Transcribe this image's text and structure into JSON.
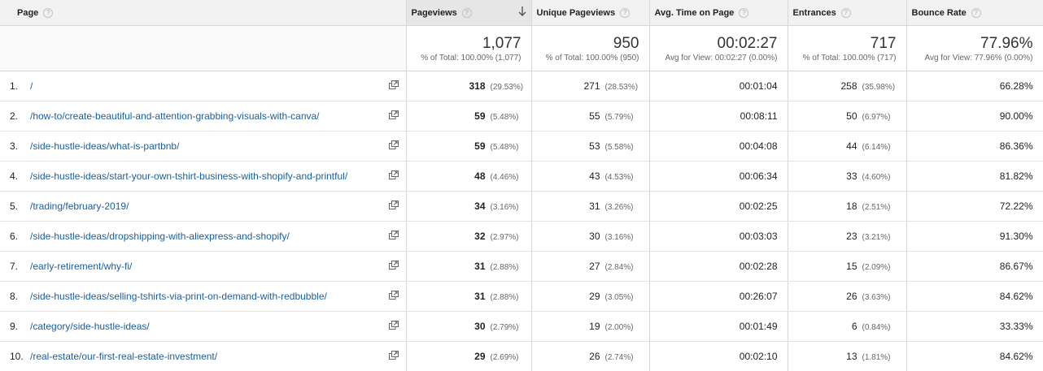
{
  "columns": {
    "page": "Page",
    "pageviews": "Pageviews",
    "unique_pageviews": "Unique Pageviews",
    "avg_time": "Avg. Time on Page",
    "entrances": "Entrances",
    "bounce_rate": "Bounce Rate",
    "help_glyph": "?"
  },
  "totals": {
    "pageviews": {
      "value": "1,077",
      "sub": "% of Total: 100.00% (1,077)"
    },
    "unique_pageviews": {
      "value": "950",
      "sub": "% of Total: 100.00% (950)"
    },
    "avg_time": {
      "value": "00:02:27",
      "sub": "Avg for View: 00:02:27 (0.00%)"
    },
    "entrances": {
      "value": "717",
      "sub": "% of Total: 100.00% (717)"
    },
    "bounce_rate": {
      "value": "77.96%",
      "sub": "Avg for View: 77.96% (0.00%)"
    }
  },
  "rows": [
    {
      "num": "1.",
      "page": "/",
      "pageviews": "318",
      "pageviews_pct": "(29.53%)",
      "unique": "271",
      "unique_pct": "(28.53%)",
      "avg_time": "00:01:04",
      "entrances": "258",
      "entrances_pct": "(35.98%)",
      "bounce": "66.28%"
    },
    {
      "num": "2.",
      "page": "/how-to/create-beautiful-and-attention-grabbing-visuals-with-canva/",
      "pageviews": "59",
      "pageviews_pct": "(5.48%)",
      "unique": "55",
      "unique_pct": "(5.79%)",
      "avg_time": "00:08:11",
      "entrances": "50",
      "entrances_pct": "(6.97%)",
      "bounce": "90.00%"
    },
    {
      "num": "3.",
      "page": "/side-hustle-ideas/what-is-partbnb/",
      "pageviews": "59",
      "pageviews_pct": "(5.48%)",
      "unique": "53",
      "unique_pct": "(5.58%)",
      "avg_time": "00:04:08",
      "entrances": "44",
      "entrances_pct": "(6.14%)",
      "bounce": "86.36%"
    },
    {
      "num": "4.",
      "page": "/side-hustle-ideas/start-your-own-tshirt-business-with-shopify-and-printful/",
      "pageviews": "48",
      "pageviews_pct": "(4.46%)",
      "unique": "43",
      "unique_pct": "(4.53%)",
      "avg_time": "00:06:34",
      "entrances": "33",
      "entrances_pct": "(4.60%)",
      "bounce": "81.82%"
    },
    {
      "num": "5.",
      "page": "/trading/february-2019/",
      "pageviews": "34",
      "pageviews_pct": "(3.16%)",
      "unique": "31",
      "unique_pct": "(3.26%)",
      "avg_time": "00:02:25",
      "entrances": "18",
      "entrances_pct": "(2.51%)",
      "bounce": "72.22%"
    },
    {
      "num": "6.",
      "page": "/side-hustle-ideas/dropshipping-with-aliexpress-and-shopify/",
      "pageviews": "32",
      "pageviews_pct": "(2.97%)",
      "unique": "30",
      "unique_pct": "(3.16%)",
      "avg_time": "00:03:03",
      "entrances": "23",
      "entrances_pct": "(3.21%)",
      "bounce": "91.30%"
    },
    {
      "num": "7.",
      "page": "/early-retirement/why-fi/",
      "pageviews": "31",
      "pageviews_pct": "(2.88%)",
      "unique": "27",
      "unique_pct": "(2.84%)",
      "avg_time": "00:02:28",
      "entrances": "15",
      "entrances_pct": "(2.09%)",
      "bounce": "86.67%"
    },
    {
      "num": "8.",
      "page": "/side-hustle-ideas/selling-tshirts-via-print-on-demand-with-redbubble/",
      "pageviews": "31",
      "pageviews_pct": "(2.88%)",
      "unique": "29",
      "unique_pct": "(3.05%)",
      "avg_time": "00:26:07",
      "entrances": "26",
      "entrances_pct": "(3.63%)",
      "bounce": "84.62%"
    },
    {
      "num": "9.",
      "page": "/category/side-hustle-ideas/",
      "pageviews": "30",
      "pageviews_pct": "(2.79%)",
      "unique": "19",
      "unique_pct": "(2.00%)",
      "avg_time": "00:01:49",
      "entrances": "6",
      "entrances_pct": "(0.84%)",
      "bounce": "33.33%"
    },
    {
      "num": "10.",
      "page": "/real-estate/our-first-real-estate-investment/",
      "pageviews": "29",
      "pageviews_pct": "(2.69%)",
      "unique": "26",
      "unique_pct": "(2.74%)",
      "avg_time": "00:02:10",
      "entrances": "13",
      "entrances_pct": "(1.81%)",
      "bounce": "84.62%"
    }
  ]
}
